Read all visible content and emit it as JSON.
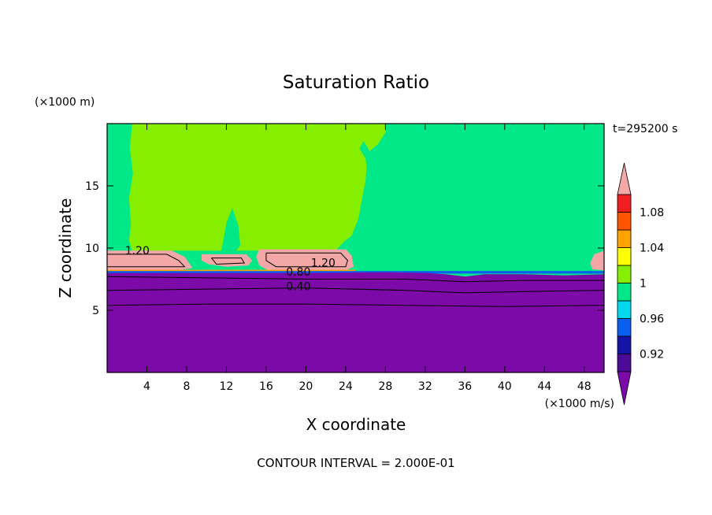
{
  "chart_data": {
    "type": "heatmap",
    "title": "Saturation Ratio",
    "xlabel": "X coordinate",
    "ylabel": "Z coordinate",
    "x_unit": "(×1000 m/s)",
    "y_unit": "(×1000 m)",
    "time_label": "t=295200 s",
    "footer": "CONTOUR INTERVAL = 2.000E-01",
    "xlim": [
      0,
      50
    ],
    "ylim": [
      0,
      20
    ],
    "x_ticks": [
      4,
      8,
      12,
      16,
      20,
      24,
      28,
      32,
      36,
      40,
      44,
      48
    ],
    "y_ticks": [
      5,
      10,
      15
    ],
    "colorbar": {
      "tick_values": [
        0.92,
        0.96,
        1,
        1.04,
        1.08
      ],
      "tick_labels": [
        "0.92",
        "0.96",
        "1",
        "1.04",
        "1.08"
      ],
      "bands": [
        {
          "lo": 0.9,
          "hi": 0.92,
          "color": "#4b0a98"
        },
        {
          "lo": 0.92,
          "hi": 0.94,
          "color": "#1414a8"
        },
        {
          "lo": 0.94,
          "hi": 0.96,
          "color": "#0a5ef0"
        },
        {
          "lo": 0.96,
          "hi": 0.98,
          "color": "#00d8f0"
        },
        {
          "lo": 0.98,
          "hi": 1.0,
          "color": "#00e887"
        },
        {
          "lo": 1.0,
          "hi": 1.02,
          "color": "#86ef00"
        },
        {
          "lo": 1.02,
          "hi": 1.04,
          "color": "#ffff00"
        },
        {
          "lo": 1.04,
          "hi": 1.06,
          "color": "#ffa200"
        },
        {
          "lo": 1.06,
          "hi": 1.08,
          "color": "#ff5500"
        },
        {
          "lo": 1.08,
          "hi": 1.1,
          "color": "#f01e1e"
        }
      ],
      "under_color": "#7b0aa8",
      "over_color": "#f4a7a7"
    },
    "contour_labels": [
      {
        "text": "1.20",
        "x": 1.8,
        "z": 9.5
      },
      {
        "text": "1.20",
        "x": 20.5,
        "z": 8.5
      },
      {
        "text": "0.80",
        "x": 18.0,
        "z": 7.8
      },
      {
        "text": "0.40",
        "x": 18.0,
        "z": 6.6
      }
    ]
  }
}
